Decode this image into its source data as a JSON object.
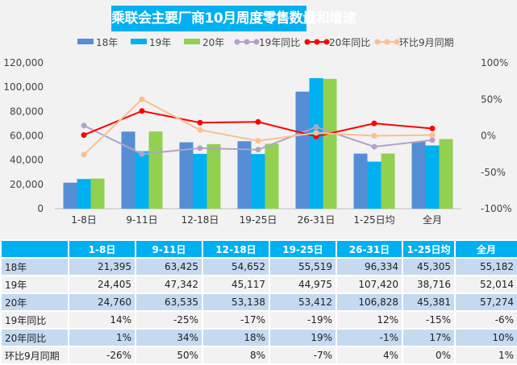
{
  "chart_data": {
    "type": "bar+line",
    "title": "乘联会主要厂商10月周度零售数量和增速",
    "categories": [
      "1-8日",
      "9-11日",
      "12-18日",
      "19-25日",
      "26-31日",
      "1-25日均",
      "全月"
    ],
    "series": [
      {
        "name": "18年",
        "type": "bar",
        "axis": "left",
        "color": "#558ed5",
        "values": [
          21395,
          63425,
          54652,
          55519,
          96334,
          45305,
          55182
        ]
      },
      {
        "name": "19年",
        "type": "bar",
        "axis": "left",
        "color": "#00b0f0",
        "values": [
          24405,
          47342,
          45117,
          44975,
          107420,
          38716,
          52014
        ]
      },
      {
        "name": "20年",
        "type": "bar",
        "axis": "left",
        "color": "#92d050",
        "values": [
          24760,
          63535,
          53138,
          53412,
          106828,
          45381,
          57274
        ]
      },
      {
        "name": "19年同比",
        "type": "line",
        "axis": "right",
        "color": "#b3a2c7",
        "values": [
          14,
          -25,
          -17,
          -19,
          12,
          -15,
          -6
        ]
      },
      {
        "name": "20年同比",
        "type": "line",
        "axis": "right",
        "color": "#ff0000",
        "values": [
          1,
          34,
          18,
          19,
          -1,
          17,
          10
        ]
      },
      {
        "name": "环比9月同期",
        "type": "line",
        "axis": "right",
        "color": "#fac090",
        "values": [
          -26,
          50,
          8,
          -7,
          4,
          0,
          1
        ]
      }
    ],
    "ylim": [
      0,
      120000
    ],
    "yticks": [
      "0",
      "20,000",
      "40,000",
      "60,000",
      "80,000",
      "100,000",
      "120,000"
    ],
    "y2lim": [
      -100,
      100
    ],
    "y2ticks": [
      "-100%",
      "-50%",
      "0%",
      "50%",
      "100%"
    ],
    "legend": "top",
    "grid": false
  },
  "table": {
    "header": [
      "",
      "1-8日",
      "9-11日",
      "12-18日",
      "19-25日",
      "26-31日",
      "1-25日均",
      "全月"
    ],
    "rows": [
      [
        "18年",
        "21,395",
        "63,425",
        "54,652",
        "55,519",
        "96,334",
        "45,305",
        "55,182"
      ],
      [
        "19年",
        "24,405",
        "47,342",
        "45,117",
        "44,975",
        "107,420",
        "38,716",
        "52,014"
      ],
      [
        "20年",
        "24,760",
        "63,535",
        "53,138",
        "53,412",
        "106,828",
        "45,381",
        "57,274"
      ],
      [
        "19年同比",
        "14%",
        "-25%",
        "-17%",
        "-19%",
        "12%",
        "-15%",
        "-6%"
      ],
      [
        "20年同比",
        "1%",
        "34%",
        "18%",
        "19%",
        "-1%",
        "17%",
        "10%"
      ],
      [
        "环比9月同期",
        "-26%",
        "50%",
        "8%",
        "-7%",
        "4%",
        "0%",
        "1%"
      ]
    ]
  }
}
